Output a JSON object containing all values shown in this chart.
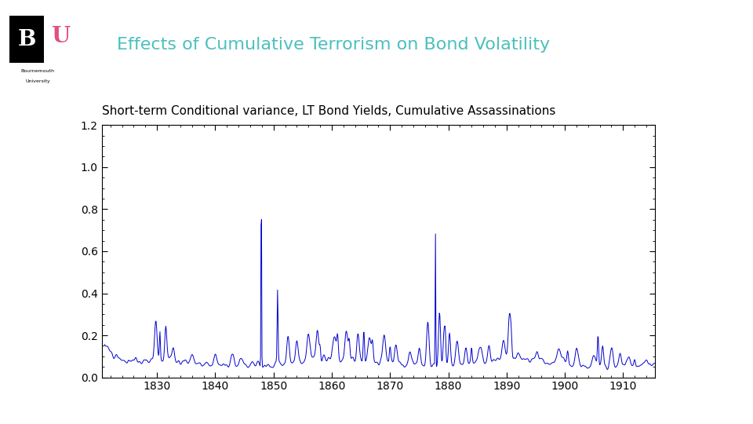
{
  "title": "Effects of Cumulative Terrorism on Bond Volatility",
  "subtitle": "Short-term Conditional variance, LT Bond Yields, Cumulative Assassinations",
  "title_color": "#4CBFBF",
  "title_fontsize": 16,
  "subtitle_fontsize": 11,
  "line_color": "#0000CC",
  "line_width": 0.7,
  "xlim": [
    1820.5,
    1915.5
  ],
  "ylim": [
    0.0,
    1.2
  ],
  "xticks": [
    1830,
    1840,
    1850,
    1860,
    1870,
    1880,
    1890,
    1900,
    1910
  ],
  "yticks": [
    0.0,
    0.2,
    0.4,
    0.6,
    0.8,
    1.0,
    1.2
  ],
  "background_color": "#FFFFFF"
}
